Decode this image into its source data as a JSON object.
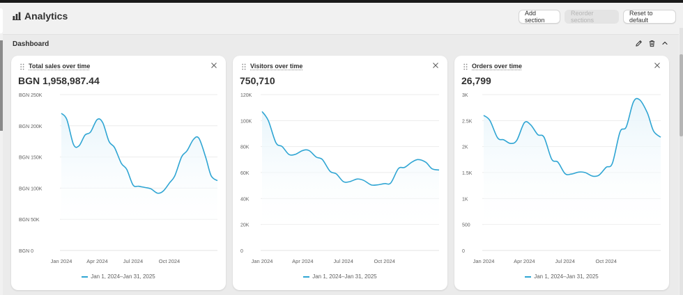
{
  "header": {
    "title": "Analytics",
    "add_section_label": "Add section",
    "reorder_sections_label": "Reorder sections",
    "reset_label": "Reset to default"
  },
  "section": {
    "title": "Dashboard"
  },
  "colors": {
    "series": "#2fa5d3",
    "area": "#e8f5fb"
  },
  "cards": [
    {
      "title": "Total sales over time",
      "value": "BGN 1,958,987.44",
      "legend": "Jan 1, 2024–Jan 31, 2025",
      "chart_data": {
        "type": "area",
        "x": [
          "2024-01-01",
          "2024-01-15",
          "2024-02-01",
          "2024-02-15",
          "2024-03-01",
          "2024-03-15",
          "2024-04-01",
          "2024-04-15",
          "2024-05-01",
          "2024-05-15",
          "2024-06-01",
          "2024-06-15",
          "2024-07-01",
          "2024-07-15",
          "2024-08-01",
          "2024-08-15",
          "2024-09-01",
          "2024-09-15",
          "2024-10-01",
          "2024-10-15",
          "2024-11-01",
          "2024-11-15",
          "2024-12-01",
          "2024-12-15",
          "2025-01-01",
          "2025-01-15",
          "2025-01-31"
        ],
        "values": [
          220000,
          210000,
          170000,
          168000,
          185000,
          190000,
          210000,
          205000,
          175000,
          165000,
          140000,
          130000,
          105000,
          103000,
          101000,
          99000,
          92000,
          95000,
          108000,
          120000,
          150000,
          160000,
          178000,
          180000,
          150000,
          120000,
          112000
        ],
        "ylim": [
          0,
          250000
        ],
        "yticks": [
          "BGN 250K",
          "BGN 200K",
          "BGN 150K",
          "BGN 100K",
          "BGN 50K",
          "BGN 0"
        ],
        "xticks": [
          "Jan 2024",
          "Apr 2024",
          "Jul 2024",
          "Oct 2024"
        ],
        "series": [
          {
            "name": "Jan 1, 2024–Jan 31, 2025"
          }
        ]
      }
    },
    {
      "title": "Visitors over time",
      "value": "750,710",
      "legend": "Jan 1, 2024–Jan 31, 2025",
      "chart_data": {
        "type": "area",
        "x": [
          "2024-01-01",
          "2024-01-15",
          "2024-02-01",
          "2024-02-15",
          "2024-03-01",
          "2024-03-15",
          "2024-04-01",
          "2024-04-15",
          "2024-05-01",
          "2024-05-15",
          "2024-06-01",
          "2024-06-15",
          "2024-07-01",
          "2024-07-15",
          "2024-08-01",
          "2024-08-15",
          "2024-09-01",
          "2024-09-15",
          "2024-10-01",
          "2024-10-15",
          "2024-11-01",
          "2024-11-15",
          "2024-12-01",
          "2024-12-15",
          "2025-01-01",
          "2025-01-15",
          "2025-01-31"
        ],
        "values": [
          107000,
          100000,
          83000,
          80000,
          74000,
          74000,
          77000,
          77000,
          72000,
          70000,
          61000,
          59000,
          53000,
          53000,
          55000,
          54000,
          50500,
          50500,
          51500,
          52000,
          63000,
          64000,
          68000,
          70000,
          68000,
          63000,
          62000
        ],
        "ylim": [
          0,
          120000
        ],
        "yticks": [
          "120K",
          "100K",
          "80K",
          "60K",
          "40K",
          "20K",
          "0"
        ],
        "xticks": [
          "Jan 2024",
          "Apr 2024",
          "Jul 2024",
          "Oct 2024"
        ],
        "series": [
          {
            "name": "Jan 1, 2024–Jan 31, 2025"
          }
        ]
      }
    },
    {
      "title": "Orders over time",
      "value": "26,799",
      "legend": "Jan 1, 2024–Jan 31, 2025",
      "chart_data": {
        "type": "area",
        "x": [
          "2024-01-01",
          "2024-01-15",
          "2024-02-01",
          "2024-02-15",
          "2024-03-01",
          "2024-03-15",
          "2024-04-01",
          "2024-04-15",
          "2024-05-01",
          "2024-05-15",
          "2024-06-01",
          "2024-06-15",
          "2024-07-01",
          "2024-07-15",
          "2024-08-01",
          "2024-08-15",
          "2024-09-01",
          "2024-09-15",
          "2024-10-01",
          "2024-10-15",
          "2024-11-01",
          "2024-11-15",
          "2024-12-01",
          "2024-12-15",
          "2025-01-01",
          "2025-01-15",
          "2025-01-31"
        ],
        "values": [
          2600,
          2500,
          2170,
          2130,
          2060,
          2120,
          2460,
          2420,
          2230,
          2180,
          1760,
          1700,
          1480,
          1470,
          1510,
          1500,
          1430,
          1450,
          1600,
          1680,
          2280,
          2380,
          2860,
          2900,
          2650,
          2300,
          2180
        ],
        "ylim": [
          0,
          3000
        ],
        "yticks": [
          "3K",
          "2.5K",
          "2K",
          "1.5K",
          "1K",
          "500",
          "0"
        ],
        "xticks": [
          "Jan 2024",
          "Apr 2024",
          "Jul 2024",
          "Oct 2024"
        ],
        "series": [
          {
            "name": "Jan 1, 2024–Jan 31, 2025"
          }
        ]
      }
    }
  ]
}
